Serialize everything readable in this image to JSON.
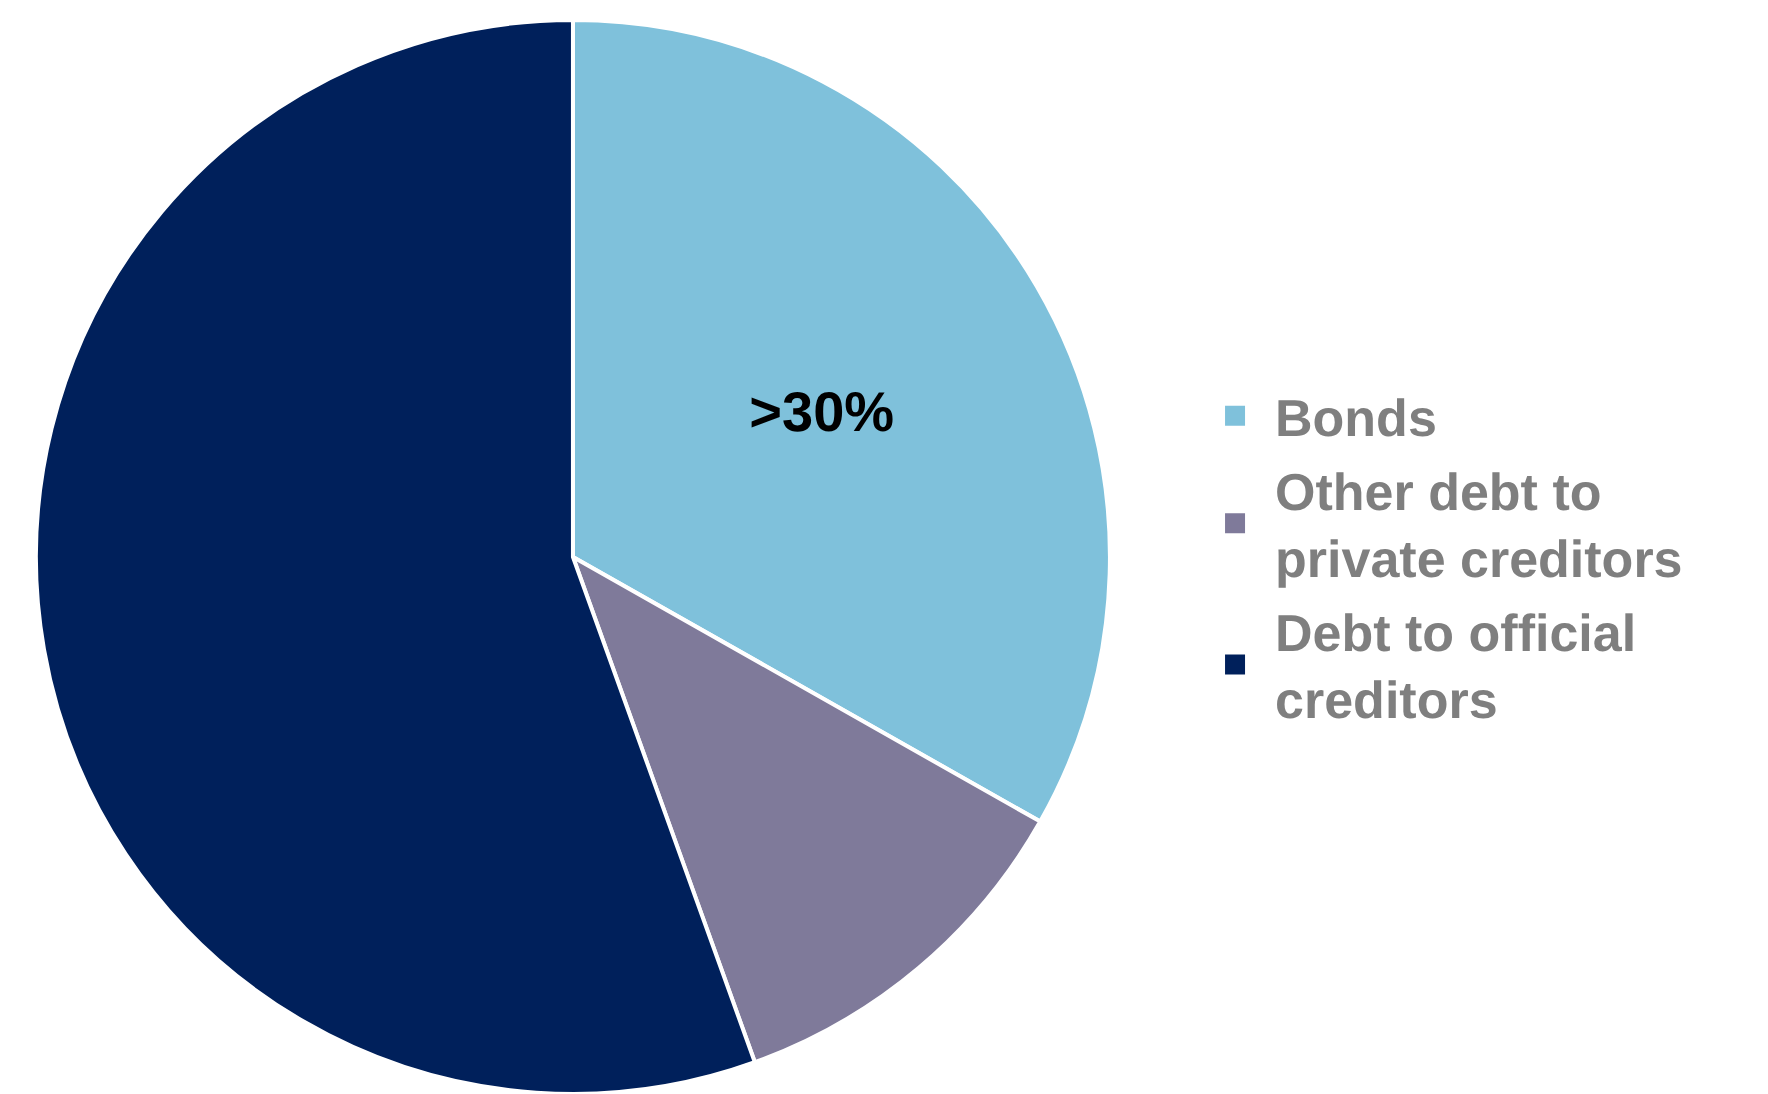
{
  "chart_data": {
    "type": "pie",
    "categories": [
      "Bonds",
      "Other debt to private creditors",
      "Debt to official creditors"
    ],
    "values": [
      33.2,
      11.3,
      55.5
    ],
    "colors": [
      "#7fc1db",
      "#7f7a9a",
      "#00205b"
    ],
    "value_labels": [
      ">30%",
      null,
      null
    ],
    "legend": "right"
  }
}
